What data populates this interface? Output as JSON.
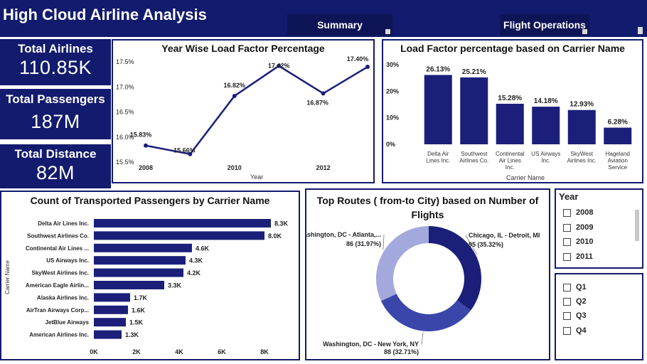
{
  "header": {
    "title": "High Cloud Airline Analysis",
    "nav": [
      "Summary",
      "Flight Operations"
    ]
  },
  "kpis": [
    {
      "label": "Total Airlines",
      "value": "110.85K"
    },
    {
      "label": "Total Passengers",
      "value": "187M"
    },
    {
      "label": "Total Distance",
      "value": "82M"
    }
  ],
  "colors": {
    "navy": "#131b6e",
    "series": "#1b1f7a",
    "donut": [
      "#1b1f7a",
      "#3a46aa",
      "#a3a9dc"
    ]
  },
  "chart_data": [
    {
      "type": "line",
      "title": "Year Wise Load Factor Percentage",
      "xlabel": "Year",
      "ylabel": "",
      "x": [
        2008,
        2009,
        2010,
        2011,
        2012,
        2013
      ],
      "values": [
        15.83,
        15.66,
        16.82,
        17.42,
        16.87,
        17.4
      ],
      "data_labels": [
        "15.83%",
        "15.66%",
        "16.82%",
        "17.42%",
        "16.87%",
        "17.40%"
      ],
      "xticks": [
        "2008",
        "2010",
        "2012"
      ],
      "yticks": [
        "15.5%",
        "16.0%",
        "16.5%",
        "17.0%",
        "17.5%"
      ],
      "ylim": [
        15.5,
        17.5
      ],
      "grid": false
    },
    {
      "type": "bar",
      "title": "Load Factor percentage based on Carrier Name",
      "xlabel": "Carrier Name",
      "ylabel": "",
      "categories": [
        "Delta Air Lines Inc.",
        "Southwest Airlines Co.",
        "Continental Air Lines Inc.",
        "US Airways Inc.",
        "SkyWest Airlines Inc.",
        "Hageland Aviation Service"
      ],
      "category_lines": [
        [
          "Delta Air",
          "Lines Inc."
        ],
        [
          "Southwest",
          "Airlines Co."
        ],
        [
          "Continental",
          "Air Lines",
          "Inc."
        ],
        [
          "US Airways",
          "Inc."
        ],
        [
          "SkyWest",
          "Airlines Inc."
        ],
        [
          "Hageland",
          "Aviation",
          "Service"
        ]
      ],
      "values": [
        26.13,
        25.21,
        15.28,
        14.18,
        12.93,
        6.28
      ],
      "data_labels": [
        "26.13%",
        "25.21%",
        "15.28%",
        "14.18%",
        "12.93%",
        "6.28%"
      ],
      "yticks": [
        "0%",
        "10%",
        "20%",
        "30%"
      ],
      "ylim": [
        0,
        30
      ],
      "grid": false
    },
    {
      "type": "bar",
      "orientation": "horizontal",
      "title": "Count of Transported Passengers by Carrier Name",
      "xlabel": "",
      "ylabel": "Carrier Name",
      "categories": [
        "Delta Air Lines Inc.",
        "Southwest Airlines Co.",
        "Continental Air Lines ...",
        "US Airways Inc.",
        "SkyWest Airlines Inc.",
        "American Eagle Airlin...",
        "Alaska Airlines Inc.",
        "AirTran Airways Corp...",
        "JetBlue Airways",
        "American Airlines Inc."
      ],
      "values": [
        8300,
        8000,
        4600,
        4300,
        4200,
        3300,
        1700,
        1600,
        1500,
        1300
      ],
      "data_labels": [
        "8.3K",
        "8.0K",
        "4.6K",
        "4.3K",
        "4.2K",
        "3.3K",
        "1.7K",
        "1.6K",
        "1.5K",
        "1.3K"
      ],
      "xticks": [
        "0K",
        "2K",
        "4K",
        "6K",
        "8K"
      ],
      "xlim": [
        0,
        8000
      ],
      "grid": false
    },
    {
      "type": "pie",
      "title": "Top Routes ( from-to City) based on Number of Flights",
      "slices": [
        {
          "label": "Chicago, IL - Detroit, MI",
          "value": 95,
          "detail": "95 (35.32%)"
        },
        {
          "label": "Washington, DC - New York, NY",
          "value": 88,
          "detail": "88 (32.71%)"
        },
        {
          "label": "Washington, DC - Atlanta,...",
          "value": 86,
          "detail": "86 (31.97%)"
        }
      ]
    }
  ],
  "slicers": {
    "year": {
      "title": "Year",
      "items": [
        "2008",
        "2009",
        "2010",
        "2011"
      ]
    },
    "quarter": {
      "items": [
        "Q1",
        "Q2",
        "Q3",
        "Q4"
      ]
    }
  }
}
